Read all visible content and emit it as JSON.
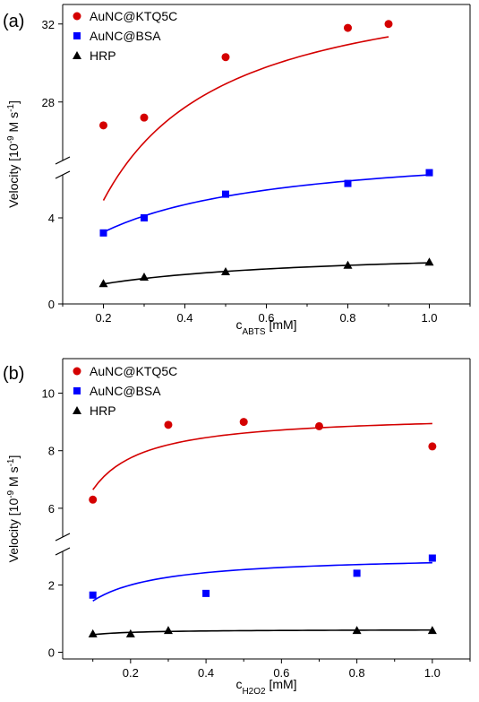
{
  "chart_data": [
    {
      "panel_label": "(a)",
      "type": "scatter",
      "xlabel_main": "c",
      "xlabel_sub": "ABTS",
      "xlabel_unit": " [mM]",
      "ylabel_main": "Velocity [10",
      "ylabel_sup1": "-9",
      "ylabel_mid": " M s",
      "ylabel_sup2": "-1",
      "ylabel_end": "]",
      "xlim": [
        0.1,
        1.1
      ],
      "x_ticks": [
        0.2,
        0.4,
        0.6,
        0.8,
        1.0
      ],
      "x_tick_labels": [
        "0.2",
        "0.4",
        "0.6",
        "0.8",
        "1.0"
      ],
      "ylim_lower": [
        0,
        6
      ],
      "ylim_upper": [
        25,
        33
      ],
      "y_ticks_lower": [
        0,
        4
      ],
      "y_ticks_upper": [
        28,
        32
      ],
      "grid": false,
      "legend_position": "top-left",
      "series": [
        {
          "name": "AuNC@KTQ5C",
          "color": "#d40000",
          "marker": "circle",
          "x": [
            0.2,
            0.3,
            0.5,
            0.8,
            0.9
          ],
          "y": [
            26.8,
            27.2,
            30.3,
            31.8,
            32.0
          ],
          "fit": {
            "vmax": 35.0,
            "km": 0.105
          }
        },
        {
          "name": "AuNC@BSA",
          "color": "#0000ff",
          "marker": "square",
          "x": [
            0.2,
            0.3,
            0.5,
            0.8,
            1.0
          ],
          "y": [
            3.3,
            4.0,
            5.1,
            5.6,
            6.1
          ],
          "fit": {
            "vmax": 7.5,
            "km": 0.25
          }
        },
        {
          "name": "HRP",
          "color": "#000000",
          "marker": "triangle",
          "x": [
            0.2,
            0.3,
            0.5,
            0.8,
            1.0
          ],
          "y": [
            0.95,
            1.25,
            1.5,
            1.8,
            1.95
          ],
          "fit": {
            "vmax": 2.6,
            "km": 0.36
          }
        }
      ]
    },
    {
      "panel_label": "(b)",
      "type": "scatter",
      "xlabel_main": "c",
      "xlabel_sub": "H2O2",
      "xlabel_unit": " [mM]",
      "ylabel_main": "Velocity [10",
      "ylabel_sup1": "-9",
      "ylabel_mid": " M s",
      "ylabel_sup2": "-1",
      "ylabel_end": "]",
      "xlim": [
        0.02,
        1.1
      ],
      "x_ticks": [
        0.2,
        0.4,
        0.6,
        0.8,
        1.0
      ],
      "x_tick_labels": [
        "0.2",
        "0.4",
        "0.6",
        "0.8",
        "1.0"
      ],
      "ylim_lower": [
        -0.2,
        3.0
      ],
      "ylim_upper": [
        5.0,
        11.2
      ],
      "y_ticks_lower": [
        0,
        2
      ],
      "y_ticks_upper": [
        6,
        8,
        10
      ],
      "grid": false,
      "legend_position": "top-left",
      "series": [
        {
          "name": "AuNC@KTQ5C",
          "color": "#d40000",
          "marker": "circle",
          "x": [
            0.1,
            0.3,
            0.5,
            0.7,
            1.0
          ],
          "y": [
            6.3,
            8.9,
            9.0,
            8.85,
            8.15
          ],
          "fit": {
            "vmax": 9.3,
            "km": 0.04
          }
        },
        {
          "name": "AuNC@BSA",
          "color": "#0000ff",
          "marker": "square",
          "x": [
            0.1,
            0.4,
            0.8,
            1.0
          ],
          "y": [
            1.7,
            1.75,
            2.35,
            2.8
          ],
          "fit": {
            "vmax": 2.9,
            "km": 0.09
          }
        },
        {
          "name": "HRP",
          "color": "#000000",
          "marker": "triangle",
          "x": [
            0.1,
            0.2,
            0.3,
            0.8,
            1.0
          ],
          "y": [
            0.55,
            0.55,
            0.65,
            0.65,
            0.65
          ],
          "fit": {
            "vmax": 0.68,
            "km": 0.03
          }
        }
      ]
    }
  ]
}
